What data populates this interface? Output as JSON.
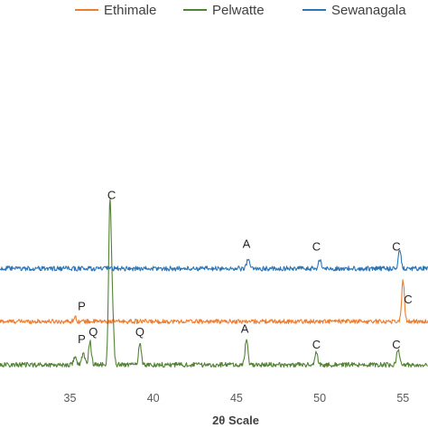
{
  "chart_data": {
    "type": "line",
    "xlabel": "2θ Scale",
    "xlim": [
      30.8,
      56.5
    ],
    "x_ticks": [
      35,
      40,
      45,
      50,
      55
    ],
    "legend_position": "top",
    "grid": false,
    "series": [
      {
        "name": "Ethimale",
        "color": "#ED7D31",
        "baseline": 1.0,
        "noise": 0.05,
        "peaks": [
          {
            "x": 35.3,
            "h": 0.1
          },
          {
            "x": 55.0,
            "h": 0.95
          }
        ]
      },
      {
        "name": "Pelwatte",
        "color": "#548235",
        "baseline": 0.0,
        "noise": 0.055,
        "peaks": [
          {
            "x": 35.3,
            "h": 0.2
          },
          {
            "x": 35.8,
            "h": 0.28
          },
          {
            "x": 36.2,
            "h": 0.55
          },
          {
            "x": 37.4,
            "h": 3.62
          },
          {
            "x": 37.55,
            "h": 1.2
          },
          {
            "x": 39.2,
            "h": 0.52
          },
          {
            "x": 45.6,
            "h": 0.6
          },
          {
            "x": 49.8,
            "h": 0.28
          },
          {
            "x": 54.7,
            "h": 0.35
          }
        ]
      },
      {
        "name": "Sewanagala",
        "color": "#2E75B6",
        "baseline": 2.22,
        "noise": 0.055,
        "peaks": [
          {
            "x": 45.7,
            "h": 0.22
          },
          {
            "x": 50.0,
            "h": 0.2
          },
          {
            "x": 54.8,
            "h": 0.45
          }
        ]
      }
    ],
    "annotations": [
      {
        "text": "C",
        "x": 37.5,
        "y": 3.82
      },
      {
        "text": "A",
        "x": 45.6,
        "y": 2.7
      },
      {
        "text": "C",
        "x": 49.8,
        "y": 2.64
      },
      {
        "text": "C",
        "x": 54.6,
        "y": 2.64
      },
      {
        "text": "C",
        "x": 55.3,
        "y": 1.42
      },
      {
        "text": "P",
        "x": 35.7,
        "y": 1.26
      },
      {
        "text": "P",
        "x": 35.7,
        "y": 0.5
      },
      {
        "text": "Q",
        "x": 36.4,
        "y": 0.67
      },
      {
        "text": "Q",
        "x": 39.2,
        "y": 0.67
      },
      {
        "text": "A",
        "x": 45.5,
        "y": 0.74
      },
      {
        "text": "C",
        "x": 49.8,
        "y": 0.38
      },
      {
        "text": "C",
        "x": 54.6,
        "y": 0.38
      }
    ]
  }
}
